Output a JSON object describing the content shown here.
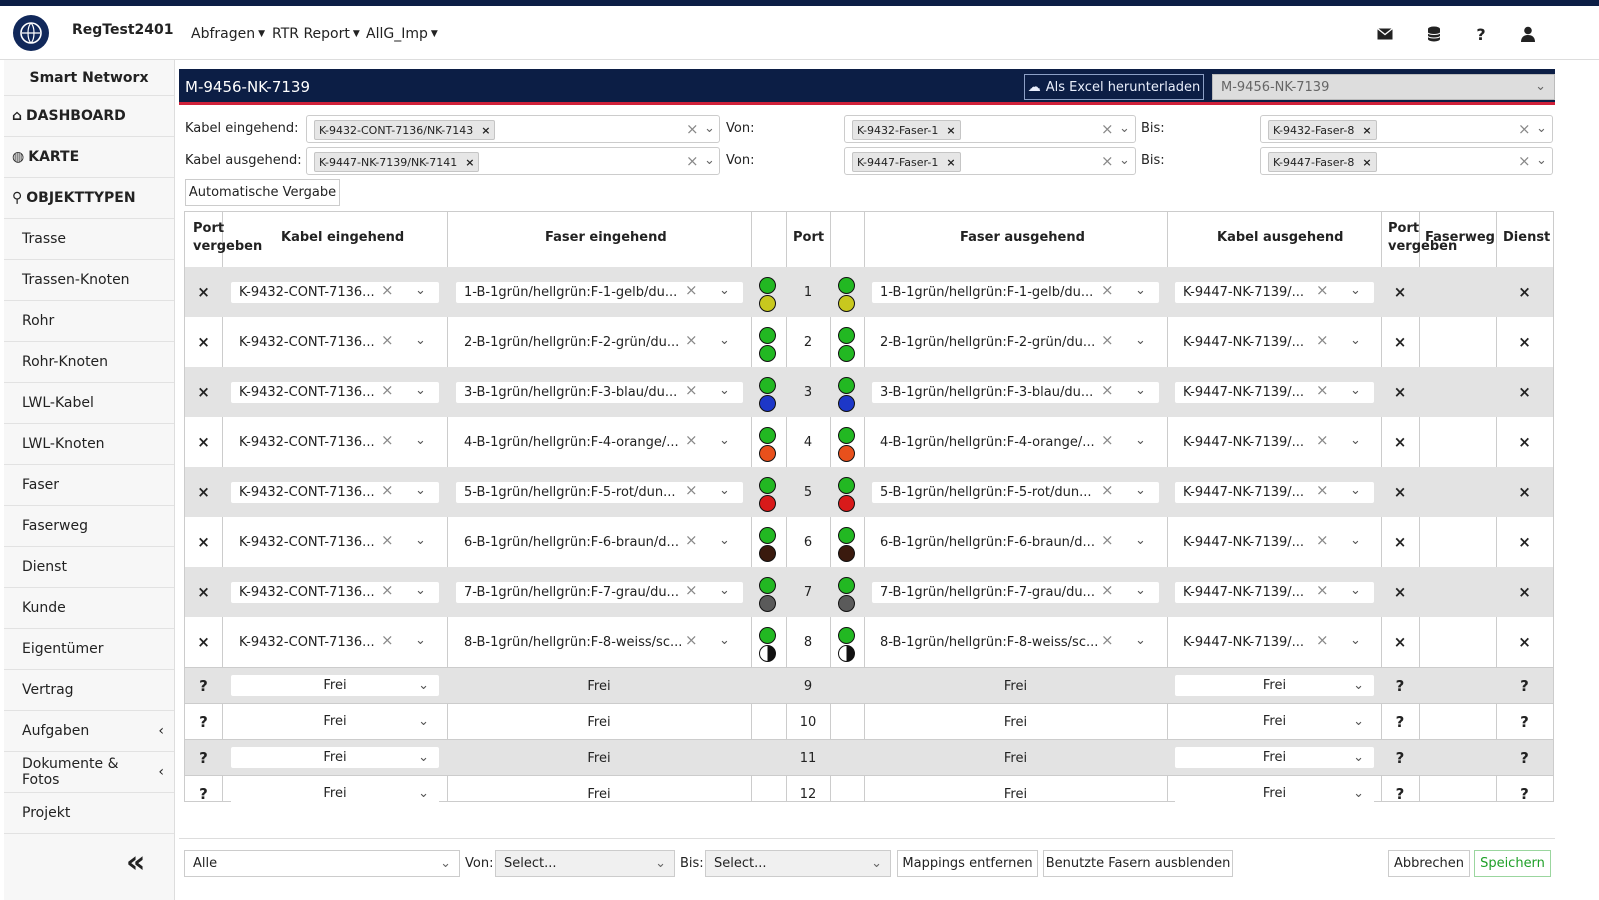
{
  "app": {
    "title": "RegTest2401",
    "logo_icon": "globe-hand-icon"
  },
  "topnav": {
    "menus": [
      "Abfragen",
      "RTR Report",
      "AllG_Imp"
    ],
    "icons": [
      "envelope-icon",
      "database-icon",
      "help-icon",
      "user-icon"
    ],
    "help_glyph": "?"
  },
  "sidebar": {
    "title": "Smart Networx",
    "main_items": [
      {
        "label": "DASHBOARD",
        "icon": "home-icon"
      },
      {
        "label": "KARTE",
        "icon": "globe-icon"
      },
      {
        "label": "OBJEKTTYPEN",
        "icon": "search-icon"
      }
    ],
    "items": [
      "Trasse",
      "Trassen-Knoten",
      "Rohr",
      "Rohr-Knoten",
      "LWL-Kabel",
      "LWL-Knoten",
      "Faser",
      "Faserweg",
      "Dienst",
      "Kunde",
      "Eigentümer",
      "Vertrag",
      "Aufgaben",
      "Dokumente & Fotos",
      "Projekt"
    ],
    "collapse_glyph": "«"
  },
  "header": {
    "title": "M-9456-NK-7139",
    "excel_button": "Als Excel herunterladen",
    "select_value": "M-9456-NK-7139"
  },
  "filters": {
    "incoming": {
      "label": "Kabel eingehend:",
      "cable": "K-9432-CONT-7136/NK-7143",
      "von_label": "Von:",
      "von": "K-9432-Faser-1",
      "bis_label": "Bis:",
      "bis": "K-9432-Faser-8"
    },
    "outgoing": {
      "label": "Kabel ausgehend:",
      "cable": "K-9447-NK-7139/NK-7141",
      "von_label": "Von:",
      "von": "K-9447-Faser-1",
      "bis_label": "Bis:",
      "bis": "K-9447-Faser-8"
    },
    "auto_button": "Automatische Vergabe"
  },
  "table": {
    "headers": {
      "port_vergeben_1": "Port",
      "port_vergeben_2": "vergeben",
      "kabel_eingehend": "Kabel eingehend",
      "faser_eingehend": "Faser eingehend",
      "port": "Port",
      "faser_ausgehend": "Faser ausgehend",
      "kabel_ausgehend": "Kabel ausgehend",
      "port_vergeben_r1": "Port",
      "port_vergeben_r2": "vergeben",
      "faserweg": "Faserweg",
      "dienst": "Dienst"
    },
    "assigned_rows": [
      {
        "mark": "×",
        "cable_in": "K-9432-CONT-7136...",
        "fiber_in": "1-B-1grün/hellgrün:F-1-gelb/du...",
        "port": "1",
        "fiber_out": "1-B-1grün/hellgrün:F-1-gelb/du...",
        "cable_out": "K-9447-NK-7139/...",
        "mark_r": "×",
        "dienst": "×",
        "color_top": "#22b822",
        "color_bottom": "#c8c81e"
      },
      {
        "mark": "×",
        "cable_in": "K-9432-CONT-7136...",
        "fiber_in": "2-B-1grün/hellgrün:F-2-grün/du...",
        "port": "2",
        "fiber_out": "2-B-1grün/hellgrün:F-2-grün/du...",
        "cable_out": "K-9447-NK-7139/...",
        "mark_r": "×",
        "dienst": "×",
        "color_top": "#22b822",
        "color_bottom": "#22b822"
      },
      {
        "mark": "×",
        "cable_in": "K-9432-CONT-7136...",
        "fiber_in": "3-B-1grün/hellgrün:F-3-blau/du...",
        "port": "3",
        "fiber_out": "3-B-1grün/hellgrün:F-3-blau/du...",
        "cable_out": "K-9447-NK-7139/...",
        "mark_r": "×",
        "dienst": "×",
        "color_top": "#22b822",
        "color_bottom": "#1d37c8"
      },
      {
        "mark": "×",
        "cable_in": "K-9432-CONT-7136...",
        "fiber_in": "4-B-1grün/hellgrün:F-4-orange/...",
        "port": "4",
        "fiber_out": "4-B-1grün/hellgrün:F-4-orange/...",
        "cable_out": "K-9447-NK-7139/...",
        "mark_r": "×",
        "dienst": "×",
        "color_top": "#22b822",
        "color_bottom": "#e8501c"
      },
      {
        "mark": "×",
        "cable_in": "K-9432-CONT-7136...",
        "fiber_in": "5-B-1grün/hellgrün:F-5-rot/dun...",
        "port": "5",
        "fiber_out": "5-B-1grün/hellgrün:F-5-rot/dun...",
        "cable_out": "K-9447-NK-7139/...",
        "mark_r": "×",
        "dienst": "×",
        "color_top": "#22b822",
        "color_bottom": "#d81a1a"
      },
      {
        "mark": "×",
        "cable_in": "K-9432-CONT-7136...",
        "fiber_in": "6-B-1grün/hellgrün:F-6-braun/d...",
        "port": "6",
        "fiber_out": "6-B-1grün/hellgrün:F-6-braun/d...",
        "cable_out": "K-9447-NK-7139/...",
        "mark_r": "×",
        "dienst": "×",
        "color_top": "#22b822",
        "color_bottom": "#3a1a0e"
      },
      {
        "mark": "×",
        "cable_in": "K-9432-CONT-7136...",
        "fiber_in": "7-B-1grün/hellgrün:F-7-grau/du...",
        "port": "7",
        "fiber_out": "7-B-1grün/hellgrün:F-7-grau/du...",
        "cable_out": "K-9447-NK-7139/...",
        "mark_r": "×",
        "dienst": "×",
        "color_top": "#22b822",
        "color_bottom": "#5a5a5a"
      },
      {
        "mark": "×",
        "cable_in": "K-9432-CONT-7136...",
        "fiber_in": "8-B-1grün/hellgrün:F-8-weiss/sc...",
        "port": "8",
        "fiber_out": "8-B-1grün/hellgrün:F-8-weiss/sc...",
        "cable_out": "K-9447-NK-7139/...",
        "mark_r": "×",
        "dienst": "×",
        "color_top": "#22b822",
        "color_bottom": "half-white-black"
      }
    ],
    "free_rows": [
      {
        "mark": "?",
        "cable_in": "Frei",
        "fiber_in": "Frei",
        "port": "9",
        "fiber_out": "Frei",
        "cable_out": "Frei",
        "mark_r": "?",
        "dienst": "?"
      },
      {
        "mark": "?",
        "cable_in": "Frei",
        "fiber_in": "Frei",
        "port": "10",
        "fiber_out": "Frei",
        "cable_out": "Frei",
        "mark_r": "?",
        "dienst": "?"
      },
      {
        "mark": "?",
        "cable_in": "Frei",
        "fiber_in": "Frei",
        "port": "11",
        "fiber_out": "Frei",
        "cable_out": "Frei",
        "mark_r": "?",
        "dienst": "?"
      },
      {
        "mark": "?",
        "cable_in": "Frei",
        "fiber_in": "Frei",
        "port": "12",
        "fiber_out": "Frei",
        "cable_out": "Frei",
        "mark_r": "?",
        "dienst": "?"
      }
    ]
  },
  "bottom": {
    "filter_value": "Alle",
    "von_label": "Von:",
    "von_placeholder": "Select...",
    "bis_label": "Bis:",
    "bis_placeholder": "Select...",
    "remove_button": "Mappings entfernen",
    "hide_button": "Benutzte Fasern ausblenden",
    "cancel_button": "Abbrechen",
    "save_button": "Speichern"
  },
  "colors": {
    "navy": "#0c1e45",
    "accent_red": "#d0213a",
    "save_green": "#1d9f26"
  }
}
